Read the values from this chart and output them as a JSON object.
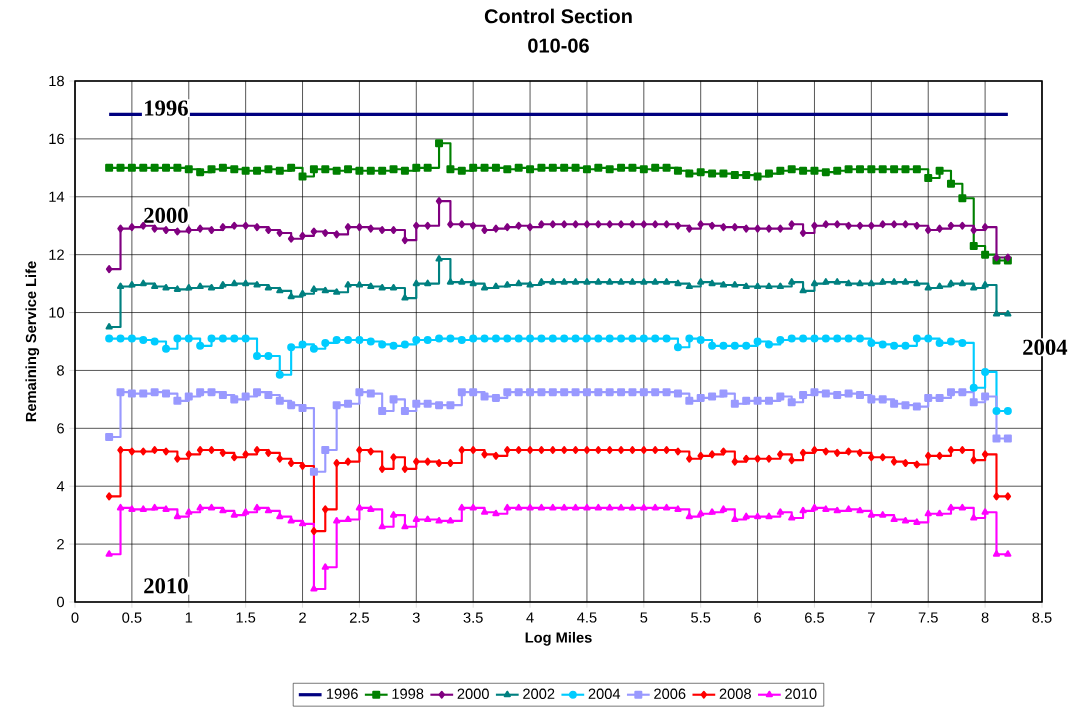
{
  "chart_data": {
    "type": "step",
    "title": "Control Section",
    "subtitle": "010-06",
    "xlabel": "Log Miles",
    "ylabel": "Remaining Service Life",
    "x": [
      0.3,
      0.4,
      0.5,
      0.6,
      0.7,
      0.8,
      0.9,
      1.0,
      1.1,
      1.2,
      1.3,
      1.4,
      1.5,
      1.6,
      1.7,
      1.8,
      1.9,
      2.0,
      2.1,
      2.2,
      2.3,
      2.4,
      2.5,
      2.6,
      2.7,
      2.8,
      2.9,
      3.0,
      3.1,
      3.2,
      3.3,
      3.4,
      3.5,
      3.6,
      3.7,
      3.8,
      3.9,
      4.0,
      4.1,
      4.2,
      4.3,
      4.4,
      4.5,
      4.6,
      4.7,
      4.8,
      4.9,
      5.0,
      5.1,
      5.2,
      5.3,
      5.4,
      5.5,
      5.6,
      5.7,
      5.8,
      5.9,
      6.0,
      6.1,
      6.2,
      6.3,
      6.4,
      6.5,
      6.6,
      6.7,
      6.8,
      6.9,
      7.0,
      7.1,
      7.2,
      7.3,
      7.4,
      7.5,
      7.6,
      7.7,
      7.8,
      7.9,
      8.0,
      8.1,
      8.2
    ],
    "series": [
      {
        "name": "1996",
        "type": "line",
        "marker": "none",
        "color": "#000080",
        "x": [
          0.3,
          8.2
        ],
        "values": [
          16.85,
          16.85
        ]
      },
      {
        "name": "1998",
        "marker": "square",
        "color": "#008000",
        "values": [
          15.0,
          15.0,
          15.0,
          15.0,
          15.0,
          15.0,
          15.0,
          14.95,
          14.85,
          14.95,
          15.0,
          14.95,
          14.9,
          14.9,
          14.95,
          14.9,
          15.0,
          14.7,
          14.95,
          14.95,
          14.9,
          14.95,
          14.9,
          14.9,
          14.9,
          14.95,
          14.9,
          15.0,
          15.0,
          15.85,
          14.95,
          14.9,
          15.0,
          15.0,
          15.0,
          14.95,
          15.0,
          14.95,
          15.0,
          15.0,
          15.0,
          15.0,
          14.95,
          15.0,
          14.95,
          15.0,
          15.0,
          14.95,
          15.0,
          15.0,
          14.9,
          14.8,
          14.85,
          14.8,
          14.8,
          14.75,
          14.75,
          14.7,
          14.8,
          14.9,
          14.95,
          14.9,
          14.9,
          14.85,
          14.9,
          14.95,
          14.95,
          14.95,
          14.95,
          14.95,
          14.95,
          14.95,
          14.65,
          14.9,
          14.45,
          13.95,
          12.3,
          12.0,
          11.8,
          11.8
        ]
      },
      {
        "name": "2000",
        "marker": "diamond",
        "color": "#800080",
        "values": [
          11.5,
          12.9,
          12.95,
          13.0,
          12.9,
          12.85,
          12.8,
          12.85,
          12.9,
          12.85,
          12.95,
          13.0,
          13.0,
          12.95,
          12.85,
          12.75,
          12.55,
          12.65,
          12.8,
          12.75,
          12.7,
          12.95,
          12.95,
          12.9,
          12.85,
          12.85,
          12.5,
          13.0,
          13.0,
          13.85,
          13.05,
          13.05,
          13.0,
          12.85,
          12.9,
          12.95,
          13.0,
          12.95,
          13.05,
          13.05,
          13.05,
          13.05,
          13.05,
          13.05,
          13.05,
          13.05,
          13.05,
          13.05,
          13.05,
          13.05,
          13.0,
          12.9,
          13.05,
          13.0,
          12.95,
          12.95,
          12.9,
          12.9,
          12.9,
          12.9,
          13.05,
          12.75,
          13.0,
          13.05,
          13.05,
          13.0,
          13.0,
          13.0,
          13.05,
          13.05,
          13.05,
          13.0,
          12.85,
          12.9,
          13.0,
          13.0,
          12.85,
          12.95,
          11.9,
          11.9
        ]
      },
      {
        "name": "2002",
        "marker": "triangle",
        "color": "#008080",
        "values": [
          9.5,
          10.9,
          10.95,
          11.0,
          10.9,
          10.85,
          10.8,
          10.85,
          10.9,
          10.85,
          10.95,
          11.0,
          11.0,
          10.95,
          10.85,
          10.75,
          10.55,
          10.65,
          10.8,
          10.75,
          10.7,
          10.95,
          10.95,
          10.9,
          10.85,
          10.85,
          10.5,
          11.0,
          11.0,
          11.85,
          11.05,
          11.05,
          11.0,
          10.85,
          10.9,
          10.95,
          11.0,
          10.95,
          11.05,
          11.05,
          11.05,
          11.05,
          11.05,
          11.05,
          11.05,
          11.05,
          11.05,
          11.05,
          11.05,
          11.05,
          11.0,
          10.9,
          11.05,
          11.0,
          10.95,
          10.95,
          10.9,
          10.9,
          10.9,
          10.9,
          11.05,
          10.75,
          11.0,
          11.05,
          11.05,
          11.0,
          11.0,
          11.0,
          11.05,
          11.05,
          11.05,
          11.0,
          10.85,
          10.9,
          11.0,
          11.0,
          10.85,
          10.95,
          9.95,
          9.95
        ]
      },
      {
        "name": "2004",
        "marker": "circle",
        "color": "#00ccff",
        "values": [
          9.1,
          9.1,
          9.1,
          9.05,
          9.0,
          8.75,
          9.1,
          9.1,
          8.85,
          9.1,
          9.1,
          9.1,
          9.1,
          8.5,
          8.5,
          7.85,
          8.8,
          8.9,
          8.75,
          8.95,
          9.05,
          9.05,
          9.05,
          9.0,
          8.9,
          8.85,
          8.9,
          9.05,
          9.05,
          9.1,
          9.1,
          9.05,
          9.1,
          9.1,
          9.1,
          9.1,
          9.1,
          9.1,
          9.1,
          9.1,
          9.1,
          9.1,
          9.1,
          9.1,
          9.1,
          9.1,
          9.1,
          9.1,
          9.1,
          9.1,
          8.8,
          9.1,
          9.05,
          8.85,
          8.85,
          8.85,
          8.85,
          9.0,
          8.9,
          9.05,
          9.1,
          9.1,
          9.1,
          9.1,
          9.1,
          9.1,
          9.1,
          8.95,
          8.9,
          8.85,
          8.85,
          9.1,
          9.1,
          8.95,
          9.0,
          8.95,
          7.4,
          7.95,
          6.6,
          6.6
        ]
      },
      {
        "name": "2006",
        "marker": "square",
        "color": "#9999ff",
        "values": [
          5.7,
          7.25,
          7.2,
          7.2,
          7.25,
          7.2,
          6.95,
          7.1,
          7.25,
          7.25,
          7.15,
          7.0,
          7.1,
          7.25,
          7.15,
          6.95,
          6.8,
          6.7,
          4.5,
          5.25,
          6.8,
          6.85,
          7.25,
          7.2,
          6.6,
          7.0,
          6.6,
          6.85,
          6.85,
          6.8,
          6.8,
          7.25,
          7.25,
          7.1,
          7.05,
          7.25,
          7.25,
          7.25,
          7.25,
          7.25,
          7.25,
          7.25,
          7.25,
          7.25,
          7.25,
          7.25,
          7.25,
          7.25,
          7.25,
          7.25,
          7.2,
          6.95,
          7.05,
          7.1,
          7.2,
          6.85,
          6.95,
          6.95,
          6.95,
          7.1,
          6.9,
          7.15,
          7.25,
          7.2,
          7.15,
          7.2,
          7.15,
          7.0,
          7.0,
          6.85,
          6.8,
          6.75,
          7.05,
          7.05,
          7.25,
          7.25,
          6.9,
          7.1,
          5.65,
          5.65
        ]
      },
      {
        "name": "2008",
        "marker": "diamond",
        "color": "#ff0000",
        "values": [
          3.65,
          5.25,
          5.2,
          5.2,
          5.25,
          5.2,
          4.95,
          5.1,
          5.25,
          5.25,
          5.15,
          5.0,
          5.1,
          5.25,
          5.15,
          4.95,
          4.8,
          4.7,
          2.45,
          3.2,
          4.8,
          4.85,
          5.25,
          5.2,
          4.6,
          5.0,
          4.6,
          4.85,
          4.85,
          4.8,
          4.8,
          5.25,
          5.25,
          5.1,
          5.05,
          5.25,
          5.25,
          5.25,
          5.25,
          5.25,
          5.25,
          5.25,
          5.25,
          5.25,
          5.25,
          5.25,
          5.25,
          5.25,
          5.25,
          5.25,
          5.2,
          4.95,
          5.05,
          5.1,
          5.2,
          4.85,
          4.95,
          4.95,
          4.95,
          5.1,
          4.9,
          5.15,
          5.25,
          5.2,
          5.15,
          5.2,
          5.15,
          5.0,
          5.0,
          4.85,
          4.8,
          4.75,
          5.05,
          5.05,
          5.25,
          5.25,
          4.9,
          5.1,
          3.65,
          3.65
        ]
      },
      {
        "name": "2010",
        "marker": "triangle",
        "color": "#ff00ff",
        "values": [
          1.65,
          3.25,
          3.2,
          3.2,
          3.25,
          3.2,
          2.95,
          3.1,
          3.25,
          3.25,
          3.15,
          3.0,
          3.1,
          3.25,
          3.15,
          2.95,
          2.8,
          2.7,
          0.45,
          1.2,
          2.8,
          2.85,
          3.25,
          3.2,
          2.6,
          3.0,
          2.6,
          2.85,
          2.85,
          2.8,
          2.8,
          3.25,
          3.25,
          3.1,
          3.05,
          3.25,
          3.25,
          3.25,
          3.25,
          3.25,
          3.25,
          3.25,
          3.25,
          3.25,
          3.25,
          3.25,
          3.25,
          3.25,
          3.25,
          3.25,
          3.2,
          2.95,
          3.05,
          3.1,
          3.2,
          2.85,
          2.95,
          2.95,
          2.95,
          3.1,
          2.9,
          3.15,
          3.25,
          3.2,
          3.15,
          3.2,
          3.15,
          3.0,
          3.0,
          2.85,
          2.8,
          2.75,
          3.05,
          3.05,
          3.25,
          3.25,
          2.9,
          3.1,
          1.65,
          1.65
        ]
      }
    ],
    "annotations": [
      "1996",
      "2000",
      "2004",
      "2010"
    ],
    "xlim": [
      0,
      8.5
    ],
    "ylim": [
      0,
      18
    ],
    "xticks": [
      0,
      0.5,
      1,
      1.5,
      2,
      2.5,
      3,
      3.5,
      4,
      4.5,
      5,
      5.5,
      6,
      6.5,
      7,
      7.5,
      8,
      8.5
    ],
    "yticks": [
      0,
      2,
      4,
      6,
      8,
      10,
      12,
      14,
      16,
      18
    ],
    "grid": true,
    "legend": "bottom"
  }
}
